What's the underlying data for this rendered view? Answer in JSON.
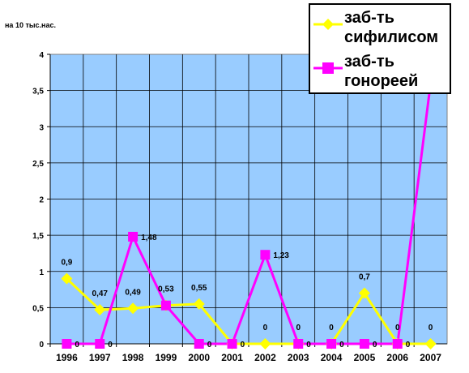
{
  "chart_data": {
    "type": "line",
    "ylabel": "на 10 тыс.нас.",
    "categories": [
      "1996",
      "1997",
      "1998",
      "1999",
      "2000",
      "2001",
      "2002",
      "2003",
      "2004",
      "2005",
      "2006",
      "2007"
    ],
    "ylim": [
      0,
      4
    ],
    "yticks": [
      "0",
      "0,5",
      "1",
      "1,5",
      "2",
      "2,5",
      "3",
      "3,5",
      "4"
    ],
    "grid": true,
    "legend_position": "top-right",
    "plot_background": "#99ccff",
    "series": [
      {
        "name": "заб-ть сифилисом",
        "color": "#ffff00",
        "marker": "diamond",
        "values": [
          0.9,
          0.47,
          0.49,
          0.53,
          0.55,
          0,
          0,
          0,
          0,
          0.7,
          0,
          0
        ],
        "labels": [
          "0,9",
          "0,47",
          "0,49",
          "0,53",
          "0,55",
          "",
          "0",
          "0",
          "0",
          "0,7",
          "0",
          "0"
        ]
      },
      {
        "name": "заб-ть гонореей",
        "color": "#ff00ff",
        "marker": "square",
        "values": [
          0,
          0,
          1.48,
          0.53,
          0,
          0,
          1.23,
          0,
          0,
          0,
          0,
          3.6
        ],
        "labels": [
          "0",
          "0",
          "1,48",
          "",
          "0",
          "0",
          "1,23",
          "0",
          "0",
          "0",
          "0",
          ""
        ]
      }
    ]
  }
}
